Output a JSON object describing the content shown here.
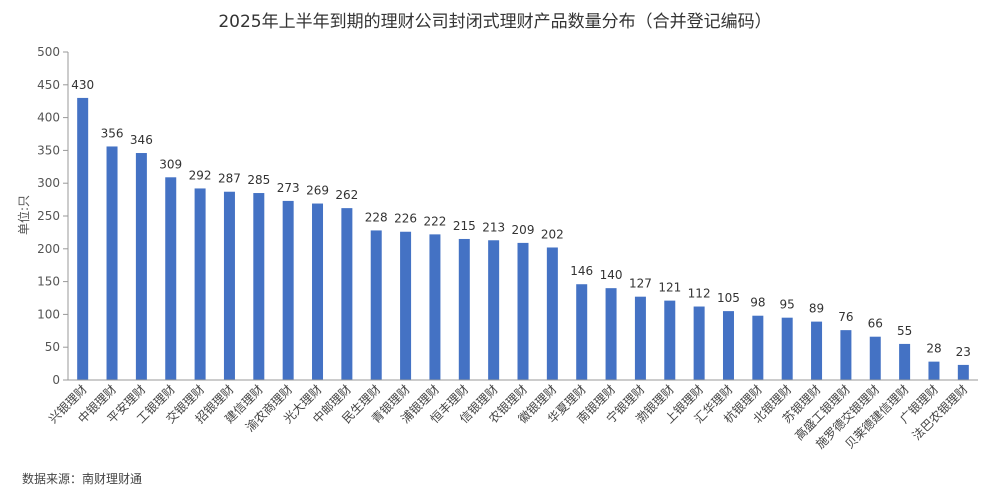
{
  "chart_data": {
    "type": "bar",
    "title": "2025年上半年到期的理财公司封闭式理财产品数量分布（合并登记编码）",
    "ylabel": "单位:只",
    "xlabel": "",
    "ylim": [
      0,
      500
    ],
    "yticks": [
      0,
      50,
      100,
      150,
      200,
      250,
      300,
      350,
      400,
      450,
      500
    ],
    "grid": false,
    "bar_color": "#4472C4",
    "categories": [
      "兴银理财",
      "中银理财",
      "平安理财",
      "工银理财",
      "交银理财",
      "招银理财",
      "建信理财",
      "渝农商理财",
      "光大理财",
      "中邮理财",
      "民生理财",
      "青银理财",
      "浦银理财",
      "恒丰理财",
      "信银理财",
      "农银理财",
      "徽银理财",
      "华夏理财",
      "南银理财",
      "宁银理财",
      "渤银理财",
      "上银理财",
      "汇华理财",
      "杭银理财",
      "北银理财",
      "苏银理财",
      "高盛工银理财",
      "施罗德交银理财",
      "贝莱德建信理财",
      "广银理财",
      "法巴农银理财"
    ],
    "values": [
      430,
      356,
      346,
      309,
      292,
      287,
      285,
      273,
      269,
      262,
      228,
      226,
      222,
      215,
      213,
      209,
      202,
      146,
      140,
      127,
      121,
      112,
      105,
      98,
      95,
      89,
      76,
      66,
      55,
      28,
      23
    ]
  },
  "source": "数据来源：南财理财通"
}
